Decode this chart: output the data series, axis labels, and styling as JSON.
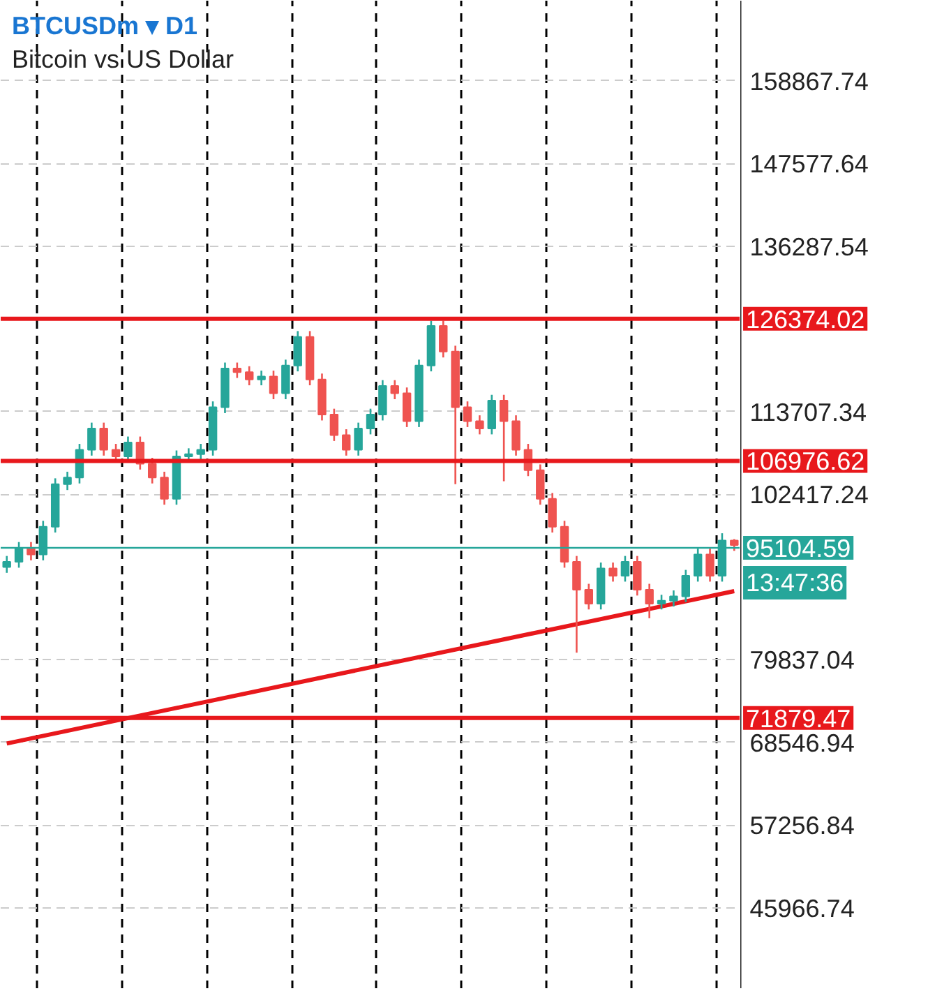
{
  "chart_data": {
    "type": "candlestick",
    "title": "BTCUSDm ▾ D1",
    "subtitle": "Bitcoin vs US Dollar",
    "categories": [
      null,
      null,
      null,
      null,
      null,
      null,
      null,
      null,
      null,
      null,
      null,
      null,
      null,
      null,
      null,
      null,
      null,
      null,
      null,
      null,
      null,
      null,
      null,
      null,
      null,
      null,
      null,
      null,
      null,
      null,
      null,
      null,
      null,
      null,
      null,
      null,
      null,
      null,
      null,
      null,
      null,
      null,
      null,
      null,
      null,
      null,
      null,
      null,
      null,
      null,
      null,
      null,
      null,
      null,
      null,
      null,
      null,
      null,
      null,
      null,
      null
    ],
    "ohlc": [
      [
        92500,
        94000,
        91700,
        93200
      ],
      [
        93200,
        95900,
        92400,
        95100
      ],
      [
        95100,
        95900,
        93400,
        94200
      ],
      [
        94200,
        98800,
        93400,
        98000
      ],
      [
        98000,
        104600,
        97200,
        103800
      ],
      [
        103800,
        105500,
        103000,
        104700
      ],
      [
        104700,
        109300,
        103900,
        108500
      ],
      [
        108500,
        112200,
        107700,
        111400
      ],
      [
        111400,
        112200,
        107700,
        108500
      ],
      [
        108500,
        109300,
        106800,
        107600
      ],
      [
        107600,
        110300,
        106800,
        109500
      ],
      [
        109500,
        110300,
        105800,
        106600
      ],
      [
        106600,
        107400,
        103900,
        104700
      ],
      [
        104700,
        105500,
        101000,
        101800
      ],
      [
        101800,
        108400,
        101000,
        107600
      ],
      [
        107600,
        108700,
        106800,
        107900
      ],
      [
        107900,
        109300,
        107100,
        108500
      ],
      [
        108500,
        115100,
        107700,
        114300
      ],
      [
        114300,
        120400,
        113500,
        119600
      ],
      [
        119600,
        120400,
        118300,
        119100
      ],
      [
        119100,
        119900,
        117300,
        118100
      ],
      [
        118100,
        119300,
        117300,
        118500
      ],
      [
        118500,
        119300,
        115400,
        116200
      ],
      [
        116200,
        120800,
        115400,
        120000
      ],
      [
        120000,
        124700,
        119200,
        123900
      ],
      [
        123900,
        124700,
        117300,
        118100
      ],
      [
        118100,
        118900,
        112500,
        113300
      ],
      [
        113300,
        114100,
        109700,
        110500
      ],
      [
        110500,
        111300,
        107700,
        108500
      ],
      [
        108500,
        112200,
        107700,
        111400
      ],
      [
        111400,
        114100,
        110600,
        113300
      ],
      [
        113300,
        118000,
        112500,
        117200
      ],
      [
        117200,
        118000,
        115400,
        116200
      ],
      [
        116200,
        117000,
        111600,
        112400
      ],
      [
        112400,
        120800,
        111600,
        120000
      ],
      [
        120000,
        126100,
        119200,
        125400
      ],
      [
        125400,
        126100,
        121100,
        121900
      ],
      [
        121900,
        122700,
        103800,
        114300
      ],
      [
        114300,
        115100,
        111600,
        112400
      ],
      [
        112400,
        113200,
        110600,
        111400
      ],
      [
        111400,
        116000,
        110600,
        115200
      ],
      [
        115200,
        116000,
        104200,
        112400
      ],
      [
        112400,
        113200,
        107700,
        108500
      ],
      [
        108500,
        109300,
        104900,
        105700
      ],
      [
        105700,
        106500,
        101000,
        101800
      ],
      [
        101800,
        102600,
        97200,
        98000
      ],
      [
        98000,
        98800,
        92400,
        93200
      ],
      [
        93200,
        94000,
        80800,
        89400
      ],
      [
        89400,
        90200,
        86700,
        87500
      ],
      [
        87500,
        93100,
        86700,
        92300
      ],
      [
        92300,
        93100,
        90500,
        91300
      ],
      [
        91300,
        94000,
        90500,
        93200
      ],
      [
        93200,
        94000,
        88600,
        89400
      ],
      [
        89400,
        90200,
        85500,
        87500
      ],
      [
        87500,
        88700,
        86700,
        87900
      ],
      [
        87900,
        89300,
        87100,
        88500
      ],
      [
        88500,
        92100,
        87700,
        91300
      ],
      [
        91300,
        95000,
        90500,
        94200
      ],
      [
        94200,
        95000,
        90500,
        91300
      ],
      [
        91300,
        97100,
        90500,
        96100
      ],
      [
        96100,
        96300,
        94700,
        95500
      ]
    ],
    "series": [
      {
        "type": "line",
        "values": [
          68400,
          null,
          null,
          null,
          null,
          null,
          null,
          null,
          null,
          null,
          null,
          null,
          null,
          null,
          null,
          null,
          null,
          null,
          null,
          null,
          null,
          null,
          null,
          null,
          null,
          null,
          null,
          null,
          null,
          null,
          null,
          null,
          null,
          null,
          null,
          null,
          null,
          null,
          null,
          null,
          null,
          null,
          null,
          null,
          null,
          null,
          null,
          null,
          null,
          null,
          null,
          null,
          null,
          null,
          null,
          null,
          null,
          null,
          null,
          null,
          89200
        ],
        "color": "#e8181c"
      }
    ],
    "ylim": [
      34900,
      169800
    ],
    "yticks": [
      158867.74,
      147577.64,
      136287.54,
      113707.34,
      102417.24,
      79837.04,
      68546.94,
      57256.84,
      45966.74
    ],
    "ref_lines": [
      {
        "axis": "y",
        "value": 126374.02,
        "label": "126374.02",
        "color": "#e8181c"
      },
      {
        "axis": "y",
        "value": 106976.62,
        "label": "106976.62",
        "color": "#e8181c"
      },
      {
        "axis": "y",
        "value": 71879.47,
        "label": "71879.47",
        "color": "#e8181c"
      },
      {
        "axis": "y",
        "value": 95104.59,
        "label": "95104.59",
        "color": "#26a69a"
      }
    ],
    "annotations": [
      "13:47:36"
    ],
    "grid": true,
    "tick_labels": "y"
  }
}
